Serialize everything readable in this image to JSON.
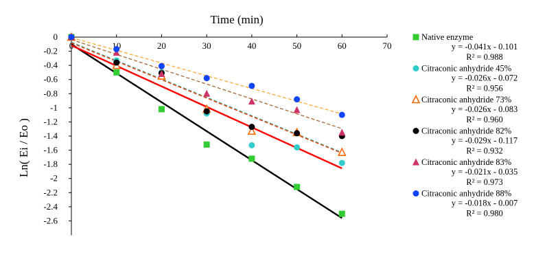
{
  "chart_data": {
    "type": "scatter",
    "title": "",
    "xlabel": "Time (min)",
    "ylabel": "Ln( Ei / Eo )",
    "xlim": [
      0,
      70
    ],
    "ylim": [
      -2.8,
      0
    ],
    "x_ticks": [
      0,
      10,
      20,
      30,
      40,
      50,
      60,
      70
    ],
    "x_tick_labels": [
      "0",
      "10",
      "20",
      "30",
      "40",
      "50",
      "60",
      "70"
    ],
    "y_ticks": [
      0,
      -0.2,
      -0.4,
      -0.6,
      -0.8,
      -1,
      -1.2,
      -1.4,
      -1.6,
      -1.8,
      -2,
      -2.2,
      -2.4,
      -2.6
    ],
    "y_tick_labels": [
      "0",
      "-0.2",
      "-0.4",
      "-0.6",
      "-0.8",
      "-1",
      "-1.2",
      "-1.4",
      "-1.6",
      "-1.8",
      "-2",
      "-2.2",
      "-2.4",
      "-2.6"
    ],
    "grid": false,
    "legend_position": "right",
    "series": [
      {
        "name": "Native enzyme",
        "marker": "square",
        "color": "#33cc33",
        "line_color": "#000000",
        "x": [
          0,
          10,
          20,
          30,
          40,
          50,
          60
        ],
        "y": [
          0,
          -0.5,
          -1.02,
          -1.52,
          -1.72,
          -2.12,
          -2.5
        ],
        "equation": "y = -0.041x - 0.101",
        "r2": "R² = 0.988",
        "fit": [
          -0.041,
          -0.101
        ]
      },
      {
        "name": "Citraconic anhydride 45%",
        "marker": "circle",
        "color": "#33cccc",
        "line_color": "#33aa88",
        "x": [
          0,
          10,
          20,
          30,
          40,
          50,
          60
        ],
        "y": [
          0,
          -0.33,
          -0.5,
          -1.08,
          -1.53,
          -1.56,
          -1.78
        ],
        "equation": "y = -0.026x - 0.072",
        "r2": "R² = 0.956",
        "fit": [
          -0.026,
          -0.072
        ]
      },
      {
        "name": "Citraconic anhydride 73%",
        "marker": "triangle-open",
        "color": "#ff6600",
        "line_color": "#ff3300",
        "x": [
          0,
          10,
          20,
          30,
          40,
          50,
          60
        ],
        "y": [
          0,
          -0.4,
          -0.55,
          -1.02,
          -1.33,
          -1.35,
          -1.63
        ],
        "equation": "y = -0.026x - 0.083",
        "r2": "R² = 0.960",
        "fit": [
          -0.026,
          -0.083
        ]
      },
      {
        "name": "Citraconic anhydride 82%",
        "marker": "circle",
        "color": "#000000",
        "line_color": "#ff0000",
        "x": [
          0,
          10,
          20,
          30,
          40,
          50,
          60
        ],
        "y": [
          0,
          -0.36,
          -0.51,
          -1.05,
          -1.27,
          -1.36,
          -1.4
        ],
        "equation": "y = -0.029x - 0.117",
        "r2": "R² = 0.932",
        "fit": [
          -0.029,
          -0.117
        ]
      },
      {
        "name": "Citraconic anhydride 83%",
        "marker": "triangle",
        "color": "#cc3366",
        "line_color": "#aa6633",
        "x": [
          0,
          10,
          20,
          30,
          40,
          50,
          60
        ],
        "y": [
          0,
          -0.22,
          -0.52,
          -0.8,
          -0.91,
          -1.03,
          -1.35
        ],
        "equation": "y = -0.021x - 0.035",
        "r2": "R² = 0.973",
        "fit": [
          -0.021,
          -0.035
        ]
      },
      {
        "name": "Citraconic anhydride 88%",
        "marker": "circle",
        "color": "#1144ff",
        "line_color": "#ffaa33",
        "x": [
          0,
          10,
          20,
          30,
          40,
          50,
          60
        ],
        "y": [
          0,
          -0.17,
          -0.41,
          -0.58,
          -0.69,
          -0.88,
          -1.1
        ],
        "equation": "y = -0.018x - 0.007",
        "r2": "R² = 0.980",
        "fit": [
          -0.018,
          -0.007
        ]
      }
    ]
  }
}
